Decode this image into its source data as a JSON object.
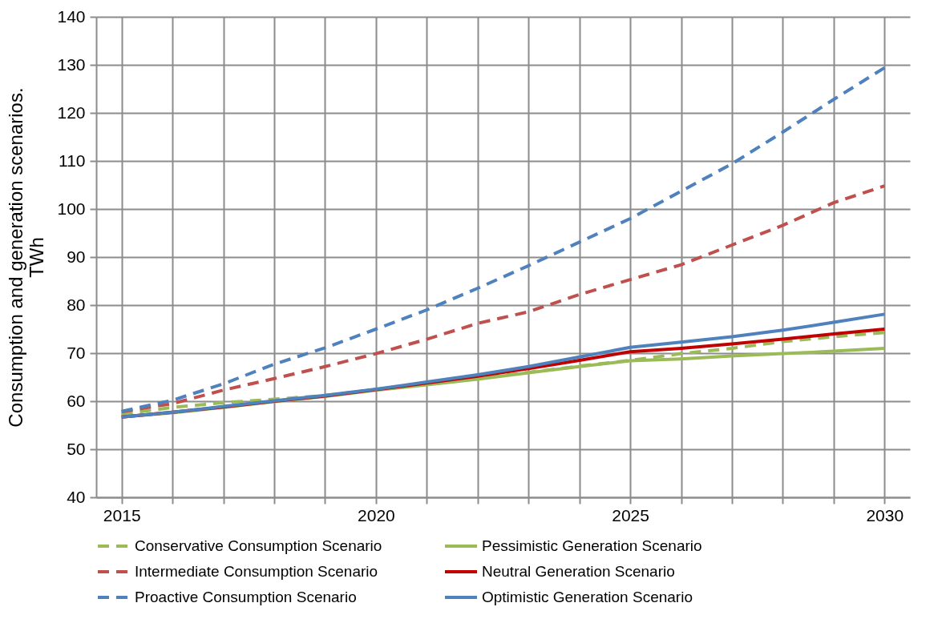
{
  "chart_data": {
    "type": "line",
    "ylabel": "Consumption and generation scenarios.\nTWh",
    "categories": [
      "2015",
      null,
      null,
      null,
      null,
      "2020",
      null,
      null,
      null,
      null,
      "2025",
      null,
      null,
      null,
      null,
      "2030"
    ],
    "ylim": [
      40,
      140
    ],
    "yticks": [
      40,
      50,
      60,
      70,
      80,
      90,
      100,
      110,
      120,
      130,
      140
    ],
    "grid": true,
    "legend": "bottom",
    "series": [
      {
        "name": "Conservative Consumption Scenario",
        "color": "#9bbb59",
        "line_style": "dashed",
        "values": [
          57.3,
          58.7,
          59.7,
          60.4,
          61.2,
          62.4,
          63.5,
          64.7,
          66.0,
          67.3,
          68.5,
          69.9,
          71.0,
          72.4,
          73.4,
          74.3
        ]
      },
      {
        "name": "Pessimistic Generation Scenario",
        "color": "#9bbb59",
        "line_style": "solid",
        "values": [
          56.7,
          57.6,
          58.7,
          59.9,
          61.0,
          62.3,
          63.4,
          64.6,
          65.9,
          67.2,
          68.4,
          68.8,
          69.4,
          69.9,
          70.4,
          71.0
        ]
      },
      {
        "name": "Intermediate Consumption Scenario",
        "color": "#c0504d",
        "line_style": "dashed",
        "values": [
          57.8,
          59.5,
          62.3,
          64.7,
          67.2,
          69.9,
          72.9,
          76.2,
          78.6,
          82.2,
          85.3,
          88.4,
          92.5,
          96.6,
          101.3,
          104.8
        ]
      },
      {
        "name": "Neutral Generation Scenario",
        "color": "#c00000",
        "line_style": "solid",
        "values": [
          56.7,
          57.7,
          58.8,
          60.0,
          61.1,
          62.4,
          63.8,
          65.2,
          66.8,
          68.5,
          70.3,
          71.0,
          71.9,
          72.9,
          74.0,
          75.0
        ]
      },
      {
        "name": "Proactive Consumption Scenario",
        "color": "#4f81bd",
        "line_style": "dashed",
        "values": [
          57.9,
          60.2,
          63.6,
          67.7,
          71.1,
          75.0,
          79.0,
          83.5,
          88.2,
          93.1,
          98.0,
          103.7,
          109.4,
          116.0,
          122.8,
          129.4
        ]
      },
      {
        "name": "Optimistic Generation Scenario",
        "color": "#4f81bd",
        "line_style": "solid",
        "values": [
          56.7,
          57.7,
          58.9,
          60.1,
          61.2,
          62.5,
          64.0,
          65.5,
          67.2,
          69.2,
          71.2,
          72.3,
          73.4,
          74.8,
          76.4,
          78.1
        ]
      }
    ]
  }
}
